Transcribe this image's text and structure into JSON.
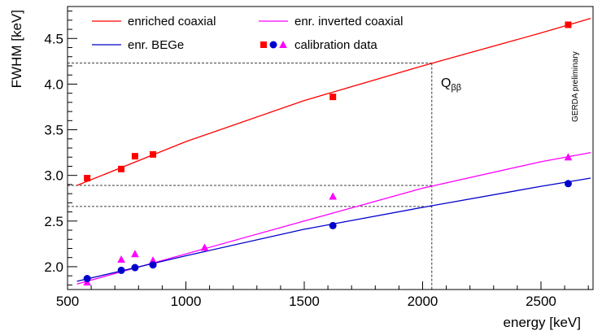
{
  "chart_data": {
    "type": "scatter",
    "xlabel": "energy [keV]",
    "ylabel": "FWHM [keV]",
    "xlim": [
      500,
      2720
    ],
    "ylim": [
      1.75,
      4.85
    ],
    "x_ticks": [
      500,
      1000,
      1500,
      2000,
      2500
    ],
    "y_ticks": [
      2.0,
      2.5,
      3.0,
      3.5,
      4.0,
      4.5
    ],
    "grid": false,
    "legend_placement": "top-left",
    "side_annotation": "GERDA preliminary",
    "qbb_label": "Q",
    "qbb_subscript": "ββ",
    "qbb_energy": 2039,
    "qbb_fwhm": {
      "coax": 4.23,
      "inverted": 2.89,
      "bege": 2.66
    },
    "series": [
      {
        "name": "enriched coaxial",
        "color": "#ff0000",
        "marker": "square",
        "fit_curve": {
          "x": [
            540,
            1000,
            1500,
            2000,
            2500,
            2710
          ],
          "y": [
            2.89,
            3.37,
            3.82,
            4.2,
            4.56,
            4.72
          ]
        },
        "points": {
          "x": [
            583,
            727,
            785,
            861,
            1621,
            2615
          ],
          "y": [
            2.97,
            3.07,
            3.21,
            3.23,
            3.86,
            4.65
          ]
        }
      },
      {
        "name": "enr. inverted coaxial",
        "color": "#ff00ff",
        "marker": "triangle",
        "fit_curve": {
          "x": [
            540,
            1000,
            1500,
            2000,
            2500,
            2710
          ],
          "y": [
            1.81,
            2.14,
            2.5,
            2.86,
            3.15,
            3.25
          ]
        },
        "points": {
          "x": [
            583,
            727,
            785,
            861,
            1079,
            1621,
            2615
          ],
          "y": [
            1.83,
            2.08,
            2.14,
            2.07,
            2.21,
            2.77,
            3.2
          ]
        }
      },
      {
        "name": "enr. BEGe",
        "color": "#0000cc",
        "marker": "circle",
        "fit_curve": {
          "x": [
            540,
            1000,
            1500,
            2000,
            2500,
            2710
          ],
          "y": [
            1.84,
            2.12,
            2.41,
            2.65,
            2.88,
            2.97
          ]
        },
        "points": {
          "x": [
            583,
            727,
            785,
            861,
            1621,
            2615
          ],
          "y": [
            1.87,
            1.96,
            1.99,
            2.02,
            2.45,
            2.91
          ]
        }
      }
    ],
    "legend": {
      "items": [
        {
          "label": "enriched coaxial",
          "color": "#ff0000",
          "kind": "line"
        },
        {
          "label": "enr. inverted coaxial",
          "color": "#ff00ff",
          "kind": "line"
        },
        {
          "label": "enr. BEGe",
          "color": "#0000cc",
          "kind": "line"
        },
        {
          "label": "calibration data",
          "kind": "markers"
        }
      ]
    }
  }
}
